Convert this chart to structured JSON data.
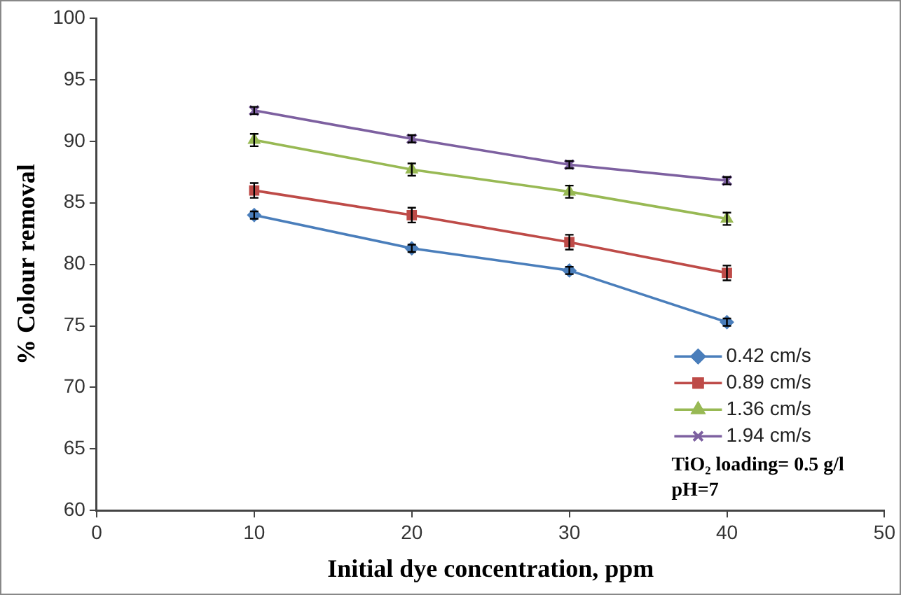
{
  "chart_data": {
    "type": "line",
    "xlabel": "Initial dye concentration, ppm",
    "ylabel": "% Colour removal",
    "x": [
      10,
      20,
      30,
      40
    ],
    "series": [
      {
        "name": "0.42 cm/s",
        "color": "#4a7ebb",
        "marker": "diamond",
        "values": [
          84,
          81.3,
          79.5,
          75.3
        ],
        "errors": [
          0.3,
          0.3,
          0.3,
          0.3
        ]
      },
      {
        "name": "0.89 cm/s",
        "color": "#be4b48",
        "marker": "square",
        "values": [
          86,
          84,
          81.8,
          79.3
        ],
        "errors": [
          0.6,
          0.6,
          0.6,
          0.6
        ]
      },
      {
        "name": "1.36 cm/s",
        "color": "#98b954",
        "marker": "triangle",
        "values": [
          90.1,
          87.7,
          85.9,
          83.7
        ],
        "errors": [
          0.5,
          0.5,
          0.5,
          0.5
        ]
      },
      {
        "name": "1.94 cm/s",
        "color": "#7d60a0",
        "marker": "cross",
        "values": [
          92.5,
          90.2,
          88.1,
          86.8
        ],
        "errors": [
          0.3,
          0.3,
          0.3,
          0.3
        ]
      }
    ],
    "xlim": [
      0,
      50
    ],
    "xticks": [
      0,
      10,
      20,
      30,
      40,
      50
    ],
    "ylim": [
      60,
      100
    ],
    "yticks": [
      60,
      65,
      70,
      75,
      80,
      85,
      90,
      95,
      100
    ],
    "grid": false,
    "legend": "bottom right",
    "line_style": "solid",
    "annotations": [
      "TiO₂ loading= 0.5 g/l",
      "pH=7"
    ]
  }
}
